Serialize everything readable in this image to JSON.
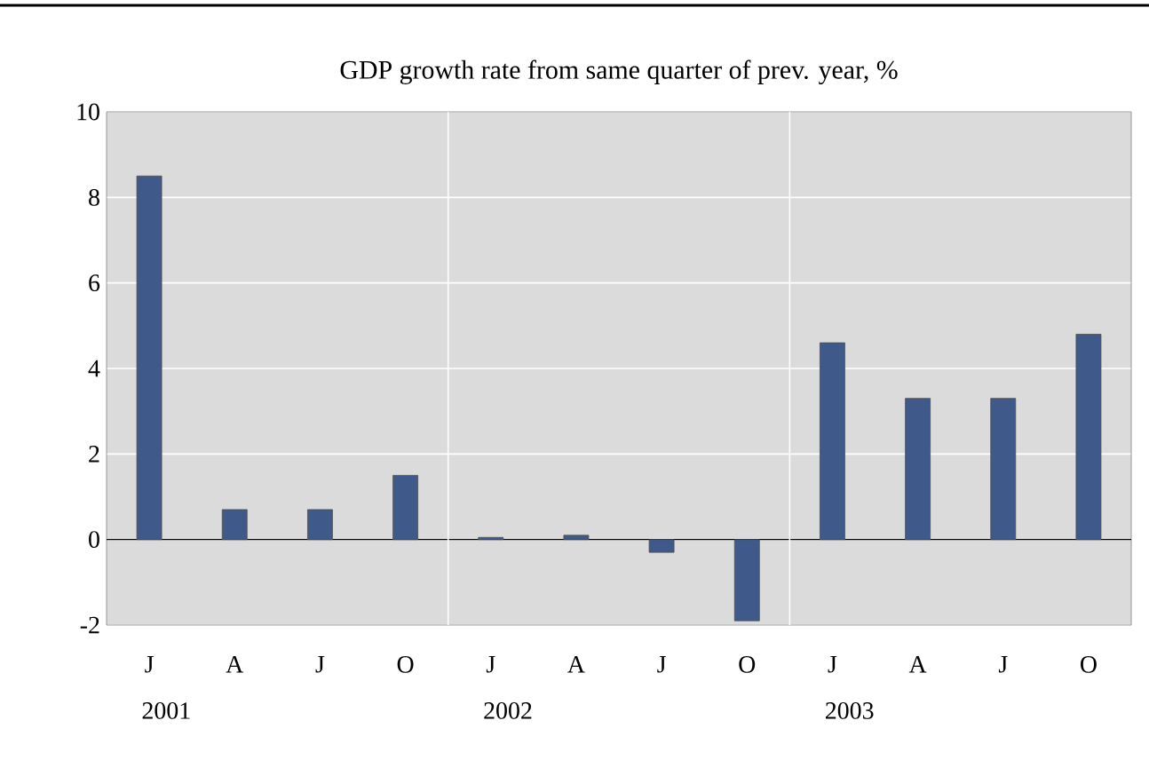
{
  "chart_data": {
    "type": "bar",
    "title": "GDP growth rate from same quarter of prev. year, %",
    "categories": [
      "J",
      "A",
      "J",
      "O",
      "J",
      "A",
      "J",
      "O",
      "J",
      "A",
      "J",
      "O"
    ],
    "values": [
      8.5,
      0.7,
      0.7,
      1.5,
      0.05,
      0.1,
      -0.3,
      -1.9,
      4.6,
      3.3,
      3.3,
      4.8
    ],
    "color": "#3f5a8a",
    "ylim": [
      -2,
      10
    ],
    "yticks": [
      -2,
      0,
      2,
      4,
      6,
      8,
      10
    ],
    "grid": "y",
    "annotations": [
      "2001",
      "2002",
      "2003"
    ]
  }
}
